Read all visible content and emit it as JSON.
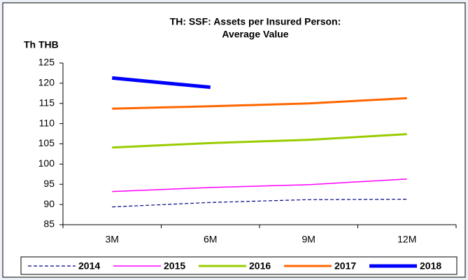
{
  "chart_data": {
    "type": "line",
    "title": [
      "TH: SSF: Assets per Insured Person:",
      "Average Value"
    ],
    "y_label": "Th THB",
    "categories": [
      "3M",
      "6M",
      "9M",
      "12M"
    ],
    "series": [
      {
        "name": "2014",
        "color": "#000080",
        "dash": true,
        "width": 1.2,
        "values": [
          89.4,
          90.5,
          91.2,
          91.3
        ]
      },
      {
        "name": "2015",
        "color": "#ff00ff",
        "width": 1.5,
        "values": [
          93.2,
          94.2,
          94.9,
          96.3
        ]
      },
      {
        "name": "2016",
        "color": "#99cc00",
        "width": 3,
        "values": [
          104.1,
          105.2,
          106.0,
          107.4
        ]
      },
      {
        "name": "2017",
        "color": "#ff6600",
        "width": 3,
        "values": [
          113.7,
          114.3,
          115.0,
          116.3
        ]
      },
      {
        "name": "2018",
        "color": "#0000ff",
        "width": 5,
        "values": [
          121.3,
          119.0,
          null,
          null
        ]
      }
    ],
    "ylim": [
      85,
      125
    ],
    "yticks": [
      85,
      90,
      95,
      100,
      105,
      110,
      115,
      120,
      125
    ],
    "grid": false,
    "legend": "bottom"
  }
}
